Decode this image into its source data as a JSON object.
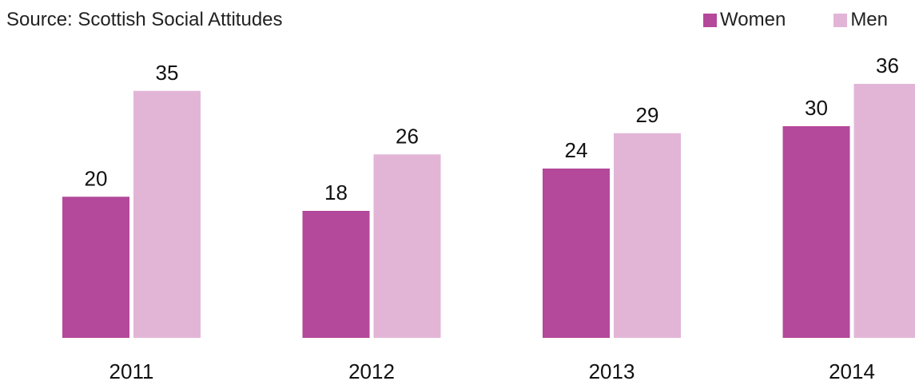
{
  "source": "Source: Scottish Social Attitudes",
  "legend": {
    "women_label": "Women",
    "men_label": "Men"
  },
  "colors": {
    "women": "#b4489a",
    "men": "#e2b5d7"
  },
  "chart_data": {
    "type": "bar",
    "categories": [
      "2011",
      "2012",
      "2013",
      "2014"
    ],
    "series": [
      {
        "name": "Women",
        "values": [
          20,
          18,
          24,
          30
        ]
      },
      {
        "name": "Men",
        "values": [
          35,
          26,
          29,
          36
        ]
      }
    ],
    "title": "",
    "xlabel": "",
    "ylabel": "",
    "ylim": [
      0,
      36
    ],
    "grid": false,
    "legend_position": "top-right",
    "data_labels": true
  }
}
